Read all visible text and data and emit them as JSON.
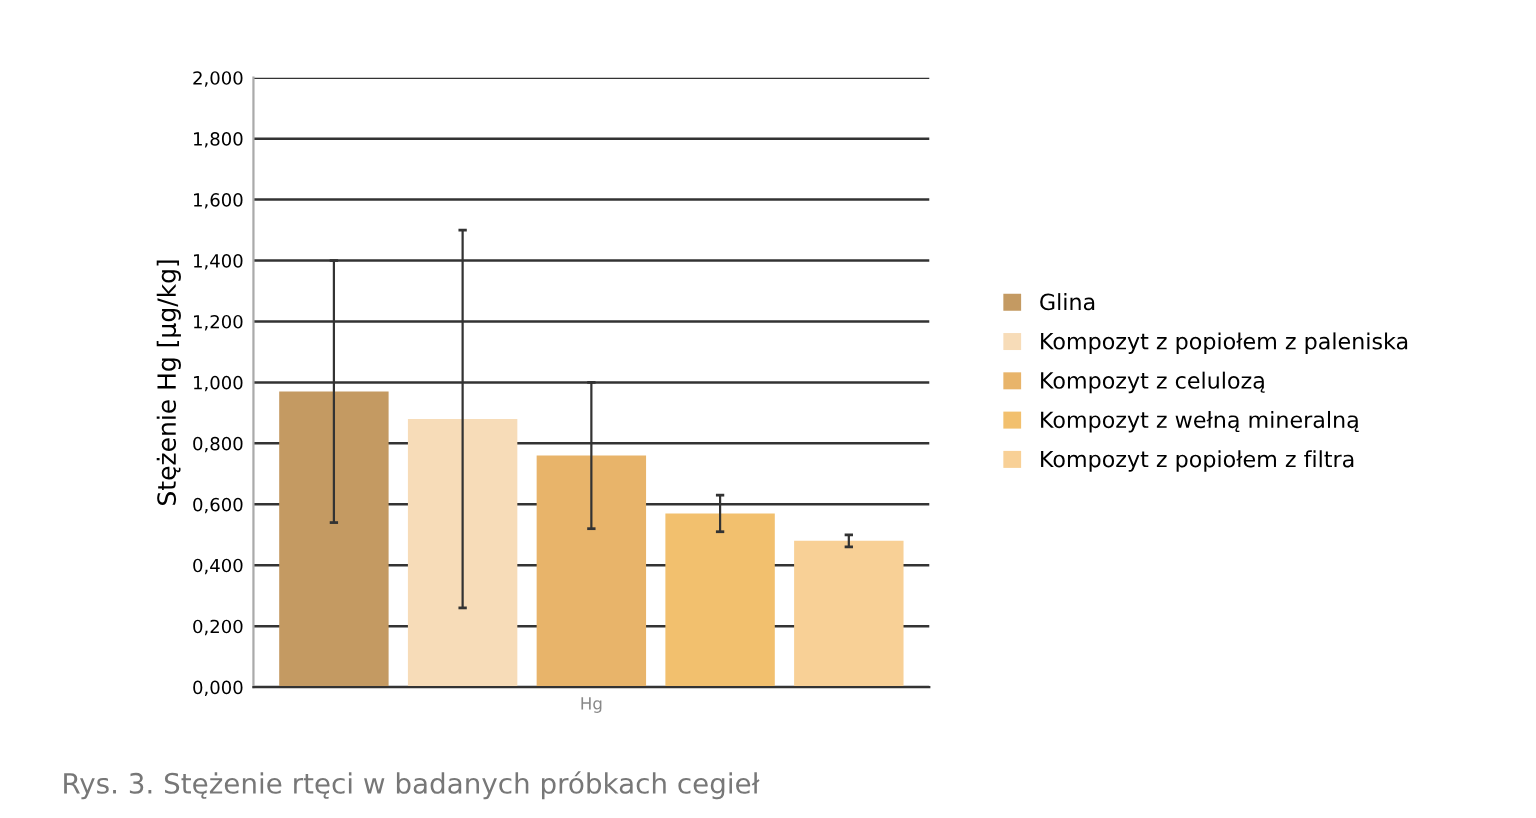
{
  "chart_data": {
    "type": "bar",
    "ylabel": "Stężenie Hg [µg/kg]",
    "categories": [
      "Hg"
    ],
    "series": [
      {
        "name": "Glina",
        "color": "#c49a62",
        "values": [
          0.97
        ],
        "errors": [
          0.43
        ]
      },
      {
        "name": "Kompozyt z popiołem z paleniska",
        "color": "#f7dcb8",
        "values": [
          0.88
        ],
        "errors": [
          0.62
        ]
      },
      {
        "name": "Kompozyt z celulozą",
        "color": "#e8b46a",
        "values": [
          0.76
        ],
        "errors": [
          0.24
        ]
      },
      {
        "name": "Kompozyt z wełną mineralną",
        "color": "#f2c06e",
        "values": [
          0.57
        ],
        "errors": [
          0.06
        ]
      },
      {
        "name": "Kompozyt z popiołem z filtra",
        "color": "#f8d096",
        "values": [
          0.48
        ],
        "errors": [
          0.02
        ]
      }
    ],
    "ylim": [
      0,
      2
    ],
    "yticks": [
      {
        "value": 0,
        "label": "0,000"
      },
      {
        "value": 0.2,
        "label": "0,200"
      },
      {
        "value": 0.4,
        "label": "0,400"
      },
      {
        "value": 0.6,
        "label": "0,600"
      },
      {
        "value": 0.8,
        "label": "0,800"
      },
      {
        "value": 1.0,
        "label": "1,000"
      },
      {
        "value": 1.2,
        "label": "1,200"
      },
      {
        "value": 1.4,
        "label": "1,400"
      },
      {
        "value": 1.6,
        "label": "1,600"
      },
      {
        "value": 1.8,
        "label": "1,800"
      },
      {
        "value": 2.0,
        "label": "2,000"
      }
    ],
    "grid": "y",
    "legend": "right",
    "annotations": [
      "Rys. 3. Stężenie rtęci w badanych próbkach cegieł"
    ]
  }
}
